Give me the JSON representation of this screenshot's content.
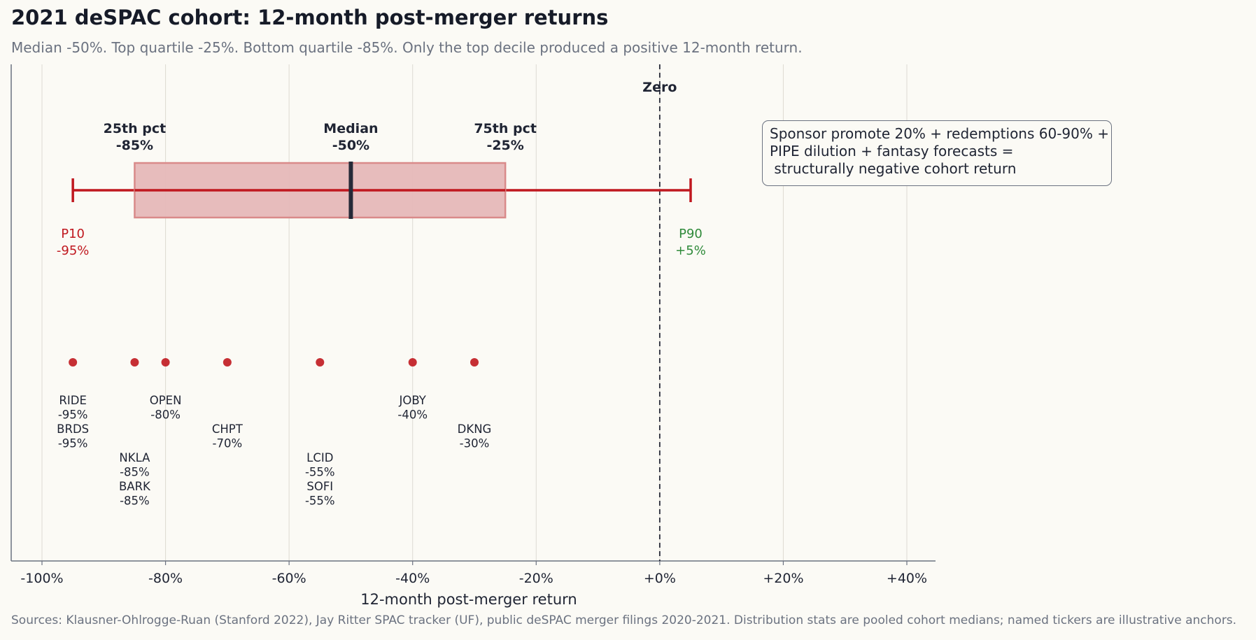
{
  "title": "2021 deSPAC cohort: 12-month post-merger returns",
  "subtitle": "Median -50%. Top quartile -25%. Bottom quartile -85%. Only the top decile produced a positive 12-month return.",
  "sources": "Sources: Klausner-Ohlrogge-Ruan (Stanford 2022), Jay Ritter SPAC tracker (UF), public deSPAC merger filings 2020-2021. Distribution stats are pooled cohort medians; named tickers are illustrative anchors.",
  "annotation": "Sponsor promote 20% + redemptions 60-90% +\nPIPE dilution + fantasy forecasts =\n structurally negative cohort return",
  "colors": {
    "box_fill": "#e6b8b8",
    "box_stroke": "#d98a8a",
    "whisker": "#c0181f",
    "median_line": "#262a38",
    "p10_text": "#c0181f",
    "p90_text": "#2f8a3a",
    "point": "#c0181f",
    "grid": "#dddad2",
    "axis": "#6b7280",
    "zero_line": "#262a38"
  },
  "chart_data": {
    "type": "box",
    "xlabel": "12-month post-merger return",
    "xlim": [
      -105,
      45
    ],
    "xticks": [
      -100,
      -80,
      -60,
      -40,
      -20,
      0,
      20,
      40
    ],
    "xtick_labels": [
      "-100%",
      "-80%",
      "-60%",
      "-40%",
      "-20%",
      "+0%",
      "+20%",
      "+40%"
    ],
    "grid": "vertical",
    "distribution": {
      "p10": -95,
      "p25": -85,
      "median": -50,
      "p75": -25,
      "p90": 5
    },
    "box_labels": [
      {
        "key": "p25",
        "line1": "25th pct",
        "line2": "-85%"
      },
      {
        "key": "median",
        "line1": "Median",
        "line2": "-50%"
      },
      {
        "key": "p75",
        "line1": "75th pct",
        "line2": "-25%"
      }
    ],
    "whisker_labels": [
      {
        "key": "p10",
        "line1": "P10",
        "line2": "-95%"
      },
      {
        "key": "p90",
        "line1": "P90",
        "line2": "+5%"
      }
    ],
    "reference_line": {
      "x": 0,
      "label": "Zero"
    },
    "points": [
      {
        "value": -95,
        "labels": [
          "RIDE",
          "-95%",
          "BRDS",
          "-95%"
        ],
        "tier": 0
      },
      {
        "value": -85,
        "labels": [
          "NKLA",
          "-85%",
          "BARK",
          "-85%"
        ],
        "tier": 2
      },
      {
        "value": -80,
        "labels": [
          "OPEN",
          "-80%"
        ],
        "tier": 0
      },
      {
        "value": -70,
        "labels": [
          "CHPT",
          "-70%"
        ],
        "tier": 1
      },
      {
        "value": -55,
        "labels": [
          "LCID",
          "-55%",
          "SOFI",
          "-55%"
        ],
        "tier": 2
      },
      {
        "value": -40,
        "labels": [
          "JOBY",
          "-40%"
        ],
        "tier": 0
      },
      {
        "value": -30,
        "labels": [
          "DKNG",
          "-30%"
        ],
        "tier": 1
      }
    ]
  }
}
